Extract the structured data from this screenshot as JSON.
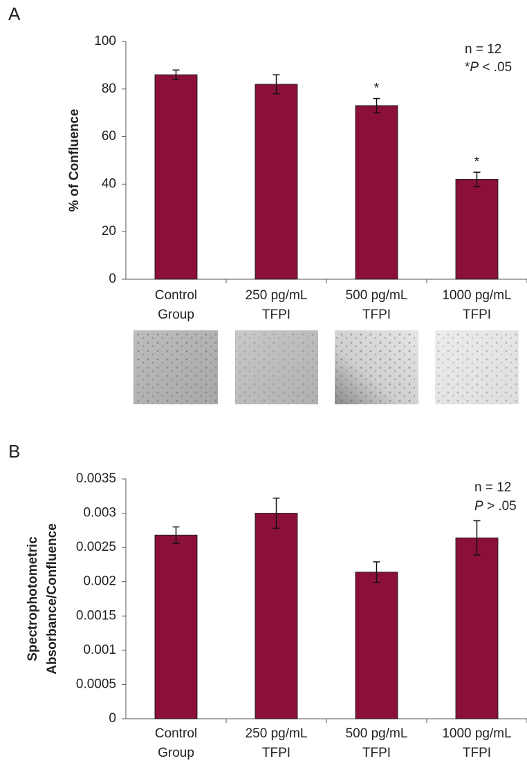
{
  "chart_data": [
    {
      "type": "bar",
      "panel_label": "A",
      "y_label": "% of Confluence",
      "categories": [
        "Control Group",
        "250 pg/mL TFPI",
        "500 pg/mL TFPI",
        "1000 pg/mL TFPI"
      ],
      "values": [
        86,
        82,
        73,
        42
      ],
      "errors": [
        2,
        4,
        3,
        3
      ],
      "markers": [
        null,
        null,
        "*",
        "*"
      ],
      "notes": [
        "n = 12",
        "*P < .05"
      ],
      "color": "#8b1038",
      "ylim": [
        0,
        100
      ],
      "yticks": [
        0,
        20,
        40,
        60,
        80,
        100
      ]
    },
    {
      "type": "bar",
      "panel_label": "B",
      "y_label": "Spectrophotometric Absorbance/Confluence",
      "categories": [
        "Control Group",
        "250 pg/mL TFPI",
        "500 pg/mL TFPI",
        "1000 pg/mL TFPI"
      ],
      "values": [
        0.00268,
        0.003,
        0.00214,
        0.00264
      ],
      "errors": [
        0.00012,
        0.00022,
        0.00015,
        0.00025
      ],
      "notes": [
        "n = 12",
        "P > .05"
      ],
      "color": "#8b1038",
      "ylim": [
        0,
        0.0035
      ],
      "yticks": [
        0,
        0.0005,
        0.001,
        0.0015,
        0.002,
        0.0025,
        0.003,
        0.0035
      ]
    }
  ]
}
